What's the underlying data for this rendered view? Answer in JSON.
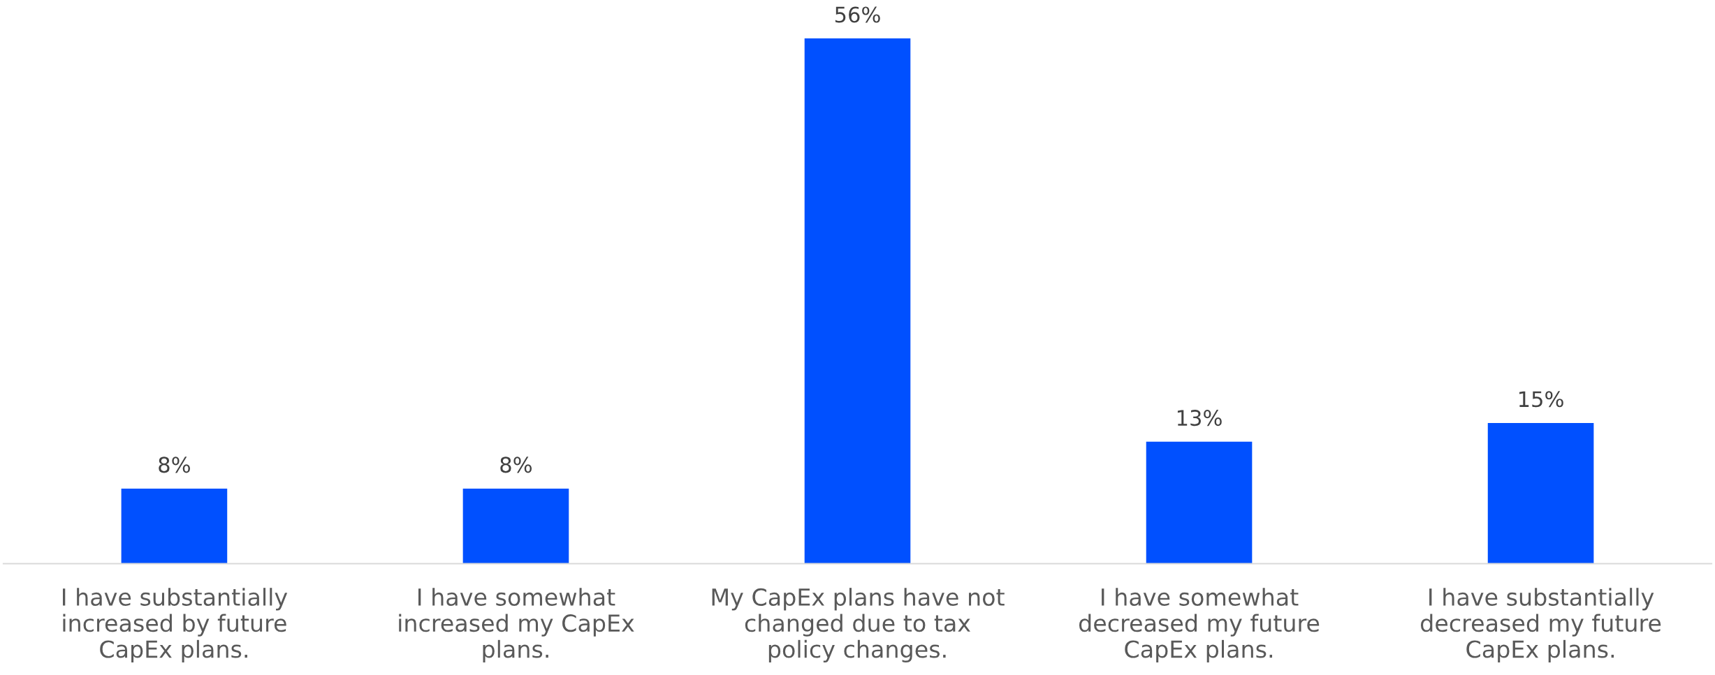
{
  "chart_data": {
    "type": "bar",
    "categories": [
      "I have substantially increased by future CapEx plans.",
      "I have somewhat increased my CapEx plans.",
      "My CapEx plans have not changed due to tax policy changes.",
      "I have somewhat decreased my future CapEx plans.",
      "I have substantially decreased my future CapEx plans."
    ],
    "values": [
      8,
      8,
      56,
      13,
      15
    ],
    "color": "#0050ff",
    "value_labels": [
      "8%",
      "8%",
      "56%",
      "13%",
      "15%"
    ],
    "grid": false,
    "legend": false
  }
}
